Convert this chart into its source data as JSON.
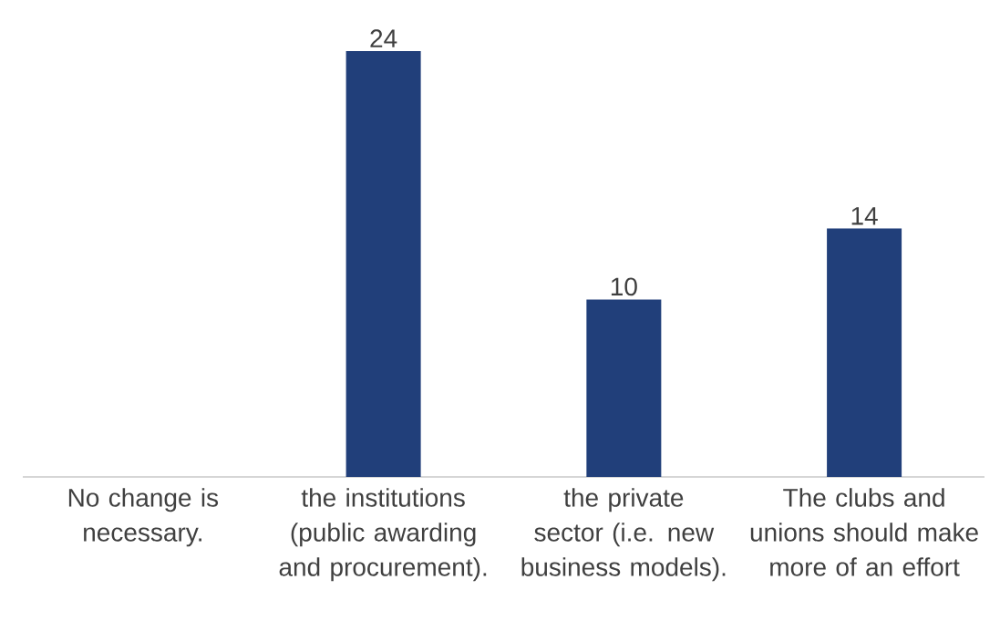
{
  "chart_data": {
    "type": "bar",
    "categories": [
      "No change is necessary.",
      "the institutions (public awarding and procurement).",
      "the private sector (i.e. new business models).",
      "The clubs and unions should make more of an effort"
    ],
    "values": [
      0,
      24,
      10,
      14
    ],
    "value_labels": [
      null,
      "24",
      "10",
      "14"
    ],
    "color": "#213f7a"
  }
}
